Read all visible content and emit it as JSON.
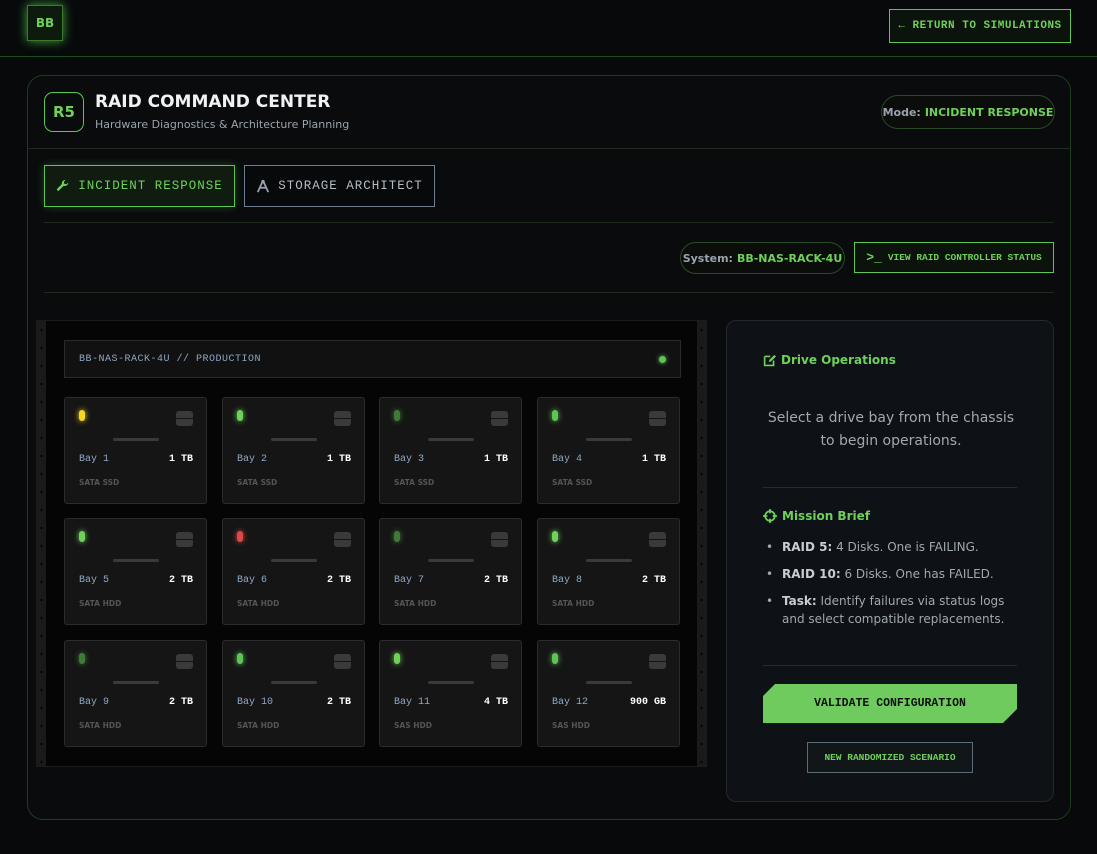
{
  "header": {
    "logo_text": "BB",
    "return_label": "← RETURN TO SIMULATIONS"
  },
  "card": {
    "badge": "R5",
    "title": "RAID COMMAND CENTER",
    "subtitle": "Hardware Diagnostics & Architecture Planning",
    "mode_label": "Mode:",
    "mode_value": "INCIDENT RESPONSE"
  },
  "tabs": [
    {
      "label": "INCIDENT RESPONSE",
      "icon": "wrench-icon",
      "active": true
    },
    {
      "label": "STORAGE ARCHITECT",
      "icon": "compass-icon",
      "active": false
    }
  ],
  "toolbar": {
    "system_label": "System:",
    "system_value": "BB-NAS-RACK-4U",
    "controller_button": "VIEW RAID CONTROLLER STATUS"
  },
  "chassis": {
    "title": "BB-NAS-RACK-4U // PRODUCTION",
    "bays": [
      {
        "name": "Bay 1",
        "size": "1 TB",
        "type": "SATA SSD",
        "led": "#f5d623"
      },
      {
        "name": "Bay 2",
        "size": "1 TB",
        "type": "SATA SSD",
        "led": "#6fd05a"
      },
      {
        "name": "Bay 3",
        "size": "1 TB",
        "type": "SATA SSD",
        "led": "#3f7a38"
      },
      {
        "name": "Bay 4",
        "size": "1 TB",
        "type": "SATA SSD",
        "led": "#5fc456"
      },
      {
        "name": "Bay 5",
        "size": "2 TB",
        "type": "SATA HDD",
        "led": "#6fd05a"
      },
      {
        "name": "Bay 6",
        "size": "2 TB",
        "type": "SATA HDD",
        "led": "#e04848"
      },
      {
        "name": "Bay 7",
        "size": "2 TB",
        "type": "SATA HDD",
        "led": "#3f7a38"
      },
      {
        "name": "Bay 8",
        "size": "2 TB",
        "type": "SATA HDD",
        "led": "#6fd05a"
      },
      {
        "name": "Bay 9",
        "size": "2 TB",
        "type": "SATA HDD",
        "led": "#3f7a38"
      },
      {
        "name": "Bay 10",
        "size": "2 TB",
        "type": "SATA HDD",
        "led": "#5fc456"
      },
      {
        "name": "Bay 11",
        "size": "4 TB",
        "type": "SAS HDD",
        "led": "#6fd05a"
      },
      {
        "name": "Bay 12",
        "size": "900 GB",
        "type": "SAS HDD",
        "led": "#5fc456"
      }
    ]
  },
  "panel": {
    "ops_title": "Drive Operations",
    "ops_hint": "Select a drive bay from the chassis to begin operations.",
    "brief_title": "Mission Brief",
    "brief": [
      {
        "bold": "RAID 5:",
        "text": " 4 Disks. One is FAILING."
      },
      {
        "bold": "RAID 10:",
        "text": " 6 Disks. One has FAILED."
      },
      {
        "bold": "Task:",
        "text": " Identify failures via status logs and select compatible replacements."
      }
    ],
    "validate_label": "VALIDATE CONFIGURATION",
    "new_label": "NEW RANDOMIZED SCENARIO"
  },
  "colors": {
    "accent": "#6fd05a",
    "background": "#07090b",
    "panel": "#0e1116"
  }
}
